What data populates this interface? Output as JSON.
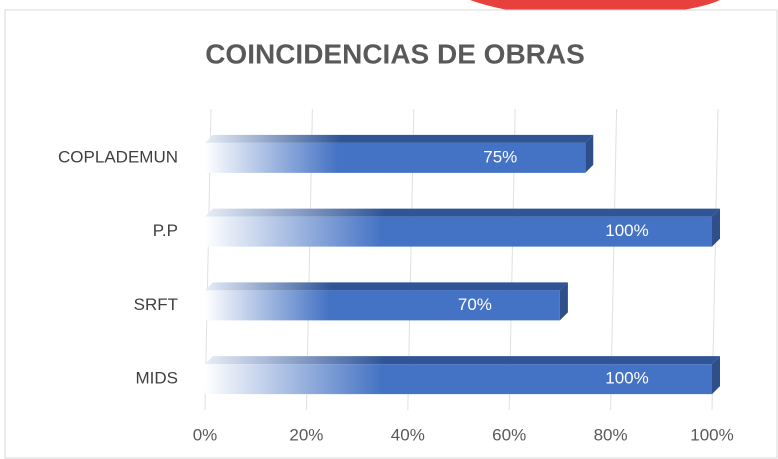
{
  "chart_data": {
    "type": "bar",
    "orientation": "horizontal",
    "title": "COINCIDENCIAS DE OBRAS",
    "categories": [
      "COPLADEMUN",
      "P.P",
      "SRFT",
      "MIDS"
    ],
    "values": [
      75,
      100,
      70,
      100
    ],
    "value_labels": [
      "75%",
      "100%",
      "70%",
      "100%"
    ],
    "color": "#4472c4",
    "xlim": [
      0,
      100
    ],
    "xticks": [
      {
        "value": 0,
        "label": "0%"
      },
      {
        "value": 20,
        "label": "20%"
      },
      {
        "value": 40,
        "label": "40%"
      },
      {
        "value": 60,
        "label": "60%"
      },
      {
        "value": 80,
        "label": "80%"
      },
      {
        "value": 100,
        "label": "100%"
      }
    ],
    "grid": true
  }
}
